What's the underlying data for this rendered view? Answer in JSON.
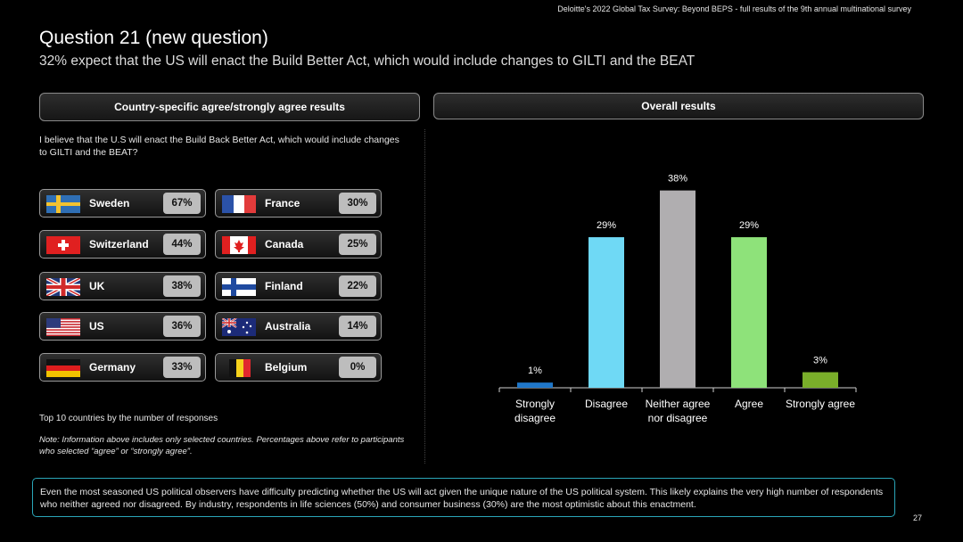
{
  "header_note": "Deloitte's 2022 Global Tax Survey: Beyond BEPS  - full results of the 9th annual multinational survey",
  "title": "Question 21 (new question)",
  "subtitle": "32% expect that the US will enact the Build Better Act, which would include changes to GILTI and the BEAT",
  "left_panel": {
    "header": "Country-specific agree/strongly agree results",
    "question": "I believe that the U.S will enact the Build Back Better Act, which would include changes to GILTI and the BEAT?",
    "countries": [
      {
        "name": "Sweden",
        "pct": "67%",
        "flag": "sweden-flag-icon"
      },
      {
        "name": "France",
        "pct": "30%",
        "flag": "france-flag-icon"
      },
      {
        "name": "Switzerland",
        "pct": "44%",
        "flag": "switzerland-flag-icon"
      },
      {
        "name": "Canada",
        "pct": "25%",
        "flag": "canada-flag-icon"
      },
      {
        "name": "UK",
        "pct": "38%",
        "flag": "uk-flag-icon"
      },
      {
        "name": "Finland",
        "pct": "22%",
        "flag": "finland-flag-icon"
      },
      {
        "name": "US",
        "pct": "36%",
        "flag": "us-flag-icon"
      },
      {
        "name": "Australia",
        "pct": "14%",
        "flag": "australia-flag-icon"
      },
      {
        "name": "Germany",
        "pct": "33%",
        "flag": "germany-flag-icon"
      },
      {
        "name": "Belgium",
        "pct": "0%",
        "flag": "belgium-flag-icon"
      }
    ],
    "note_top": "Top 10 countries by the number of responses",
    "note": "Note: Information above includes only selected countries. Percentages above refer to participants who selected “agree” or “strongly agree”."
  },
  "right_panel": {
    "header": "Overall results"
  },
  "chart_data": {
    "type": "bar",
    "categories": [
      "Strongly disagree",
      "Disagree",
      "Neither agree nor disagree",
      "Agree",
      "Strongly agree"
    ],
    "category_lines": [
      [
        "Strongly",
        "disagree"
      ],
      [
        "Disagree"
      ],
      [
        "Neither agree",
        "nor disagree"
      ],
      [
        "Agree"
      ],
      [
        "Strongly agree"
      ]
    ],
    "values": [
      1,
      29,
      38,
      29,
      3
    ],
    "data_labels": [
      "1%",
      "29%",
      "38%",
      "29%",
      "3%"
    ],
    "colors": [
      "#1f77c9",
      "#6fd9f5",
      "#b0aeb0",
      "#8ee27a",
      "#7aae2a"
    ],
    "ylim": [
      0,
      40
    ],
    "grid": false,
    "legend": "none"
  },
  "footer": "Even the most seasoned US political observers have difficulty predicting whether the US will act given the unique nature of the US political system. This likely explains the very high number of respondents who neither agreed nor disagreed.  By industry, respondents in life sciences (50%) and consumer business (30%) are the most optimistic about this enactment.",
  "page_number": "27"
}
